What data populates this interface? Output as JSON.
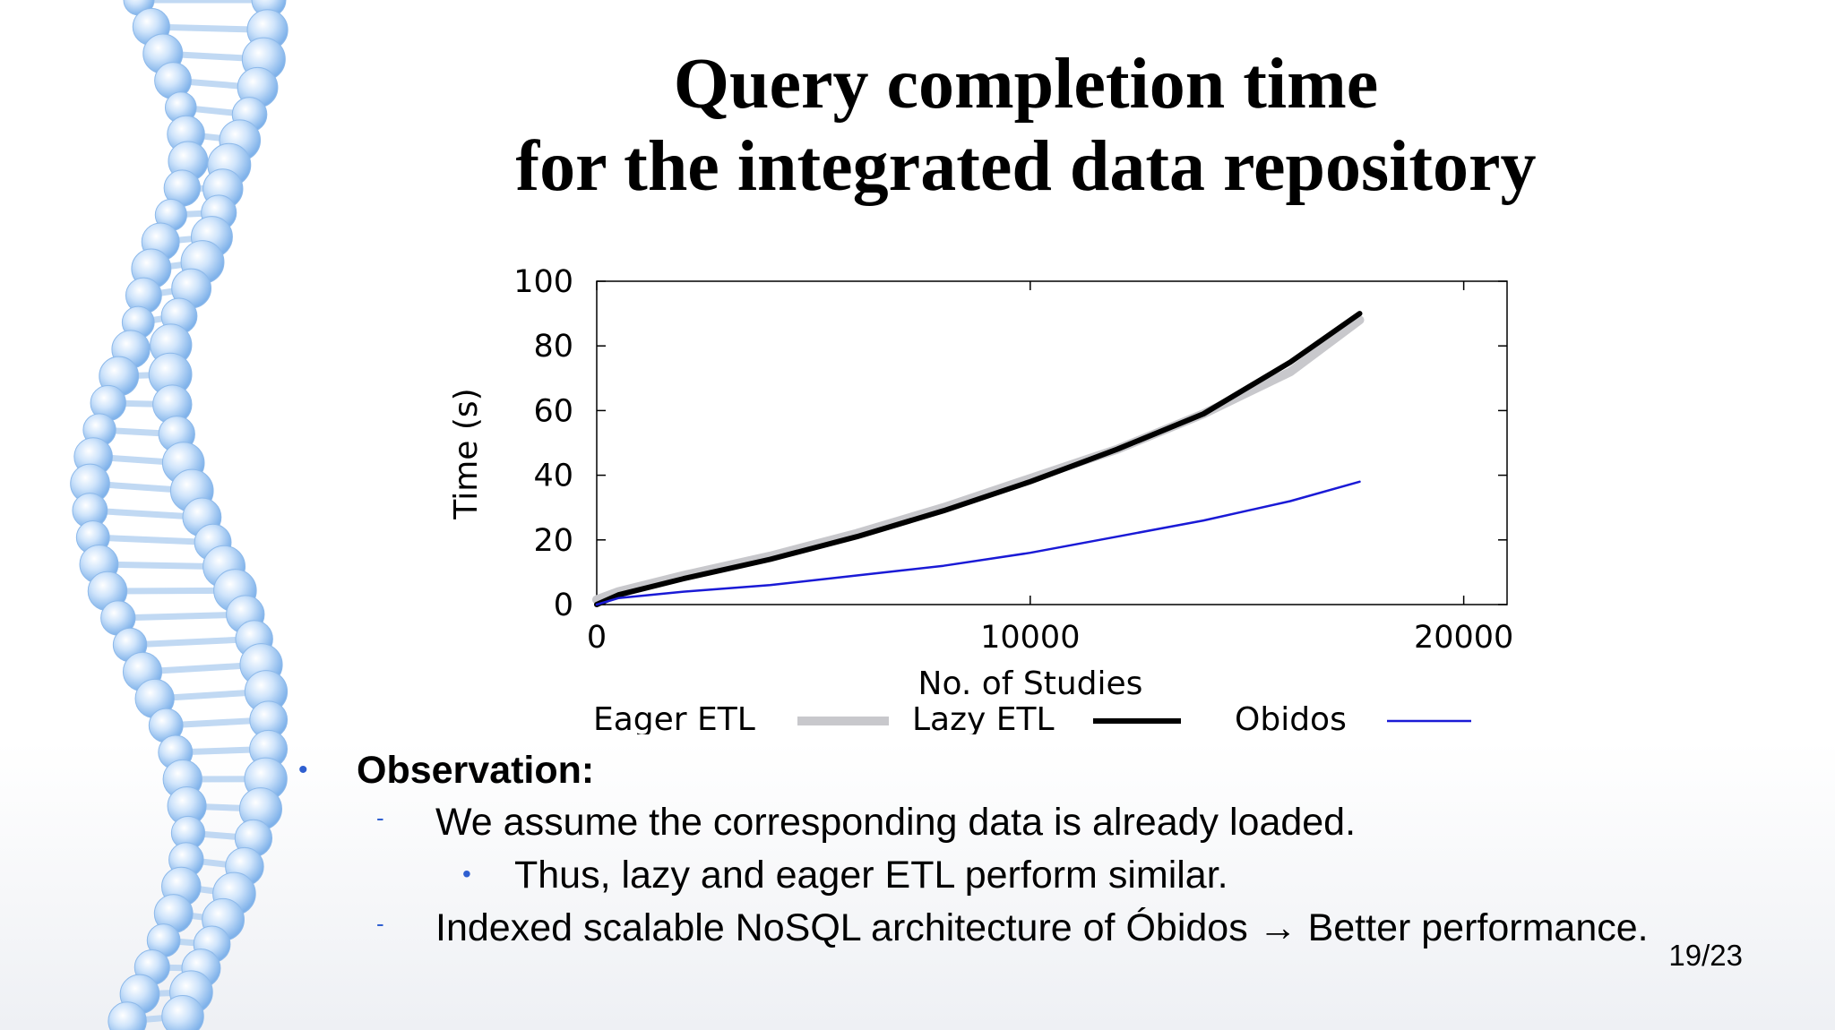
{
  "slide": {
    "title_line1": "Query completion time",
    "title_line2": "for the integrated data repository",
    "page_number": "19/23"
  },
  "bullets": {
    "observation": "Observation:",
    "item1": "We assume the corresponding data is already loaded.",
    "item1_sub": "Thus, lazy and eager ETL perform similar.",
    "item2": "Indexed scalable NoSQL architecture of Óbidos → Better performance."
  },
  "theme": {
    "bullet_color": "#2f5fd0",
    "decoration": "dna-helix"
  },
  "chart_data": {
    "type": "line",
    "xlabel": "No. of Studies",
    "ylabel": "Time (s)",
    "xlim": [
      0,
      21000
    ],
    "ylim": [
      0,
      100
    ],
    "xticks": [
      0,
      10000,
      20000
    ],
    "yticks": [
      0,
      20,
      40,
      60,
      80,
      100
    ],
    "xtick_labels": [
      "0",
      "10000",
      "20000"
    ],
    "ytick_labels": [
      "0",
      "20",
      "40",
      "60",
      "80",
      "100"
    ],
    "grid": false,
    "legend_position": "bottom",
    "series": [
      {
        "name": "Eager ETL",
        "color": "#c8c8cc",
        "x": [
          0,
          500,
          2000,
          4000,
          6000,
          8000,
          10000,
          12000,
          14000,
          16000,
          17600
        ],
        "y": [
          1.5,
          4,
          9,
          15,
          22,
          30,
          39,
          48,
          59,
          72,
          88
        ]
      },
      {
        "name": "Lazy ETL",
        "color": "#000000",
        "x": [
          0,
          500,
          2000,
          4000,
          6000,
          8000,
          10000,
          12000,
          14000,
          16000,
          17600
        ],
        "y": [
          0,
          3,
          8,
          14,
          21,
          29,
          38,
          48,
          59,
          75,
          90
        ]
      },
      {
        "name": "Obidos",
        "color": "#1a1ad6",
        "x": [
          0,
          500,
          2000,
          4000,
          6000,
          8000,
          10000,
          12000,
          14000,
          16000,
          17600
        ],
        "y": [
          0,
          2,
          4,
          6,
          9,
          12,
          16,
          21,
          26,
          32,
          38
        ]
      }
    ]
  }
}
